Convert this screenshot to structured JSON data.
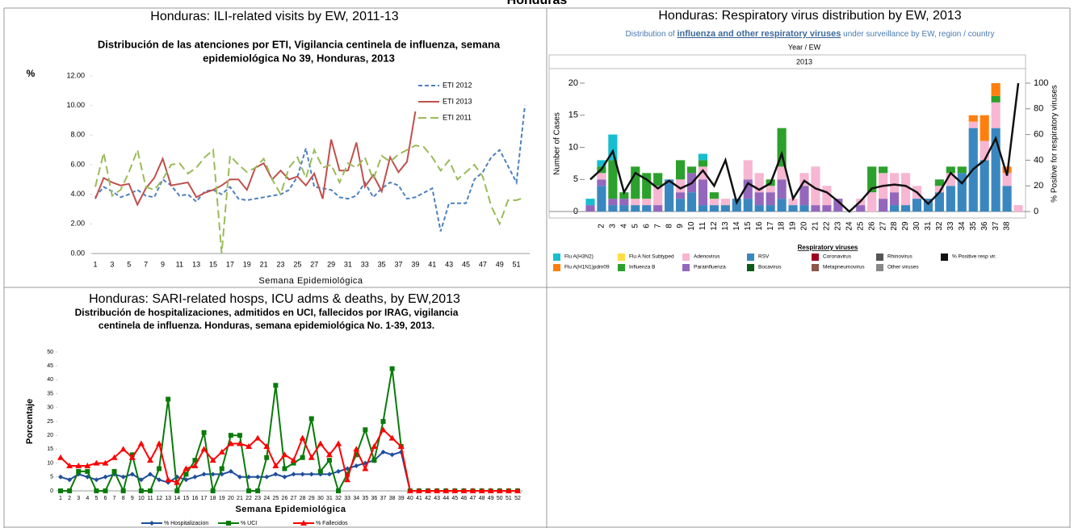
{
  "page_title": "Honduras",
  "chart_data": [
    {
      "type": "line",
      "panel_title": "Honduras: ILI-related visits by EW, 2011-13",
      "title": [
        "Distribución de las atenciones por ETI, Vigilancia centinela de influenza, semana",
        "epidemiológica No 39, Honduras, 2013"
      ],
      "y_label": "%",
      "x_label": "Semana Epidemiológica",
      "x": [
        1,
        2,
        3,
        4,
        5,
        6,
        7,
        8,
        9,
        10,
        11,
        12,
        13,
        14,
        15,
        16,
        17,
        18,
        19,
        20,
        21,
        22,
        23,
        24,
        25,
        26,
        27,
        28,
        29,
        30,
        31,
        32,
        33,
        34,
        35,
        36,
        37,
        38,
        39,
        40,
        41,
        42,
        43,
        44,
        45,
        46,
        47,
        48,
        49,
        50,
        51,
        52
      ],
      "xlim": [
        1,
        52
      ],
      "xticks": [
        1,
        3,
        5,
        7,
        9,
        11,
        13,
        15,
        17,
        19,
        21,
        23,
        25,
        27,
        29,
        31,
        33,
        35,
        37,
        39,
        41,
        43,
        45,
        47,
        49,
        51
      ],
      "ylim": [
        0,
        12
      ],
      "yticks": [
        {
          "value": 0,
          "label": "0.00"
        },
        {
          "value": 2,
          "label": "2.00"
        },
        {
          "value": 4,
          "label": "4.00"
        },
        {
          "value": 6,
          "label": "6.00"
        },
        {
          "value": 8,
          "label": "8.00"
        },
        {
          "value": 10,
          "label": "10.00"
        },
        {
          "value": 12,
          "label": "12.00"
        }
      ],
      "grid": false,
      "legend": "upper-right",
      "series": [
        {
          "name": "ETI 2012",
          "color": "#4f81bd",
          "style": "dashed",
          "values": [
            3.8,
            4.5,
            4.2,
            3.8,
            4.0,
            4.3,
            3.9,
            3.8,
            5.0,
            4.6,
            3.9,
            4.0,
            3.5,
            4.2,
            4.3,
            4.0,
            4.5,
            3.7,
            3.6,
            3.7,
            3.8,
            3.9,
            4.0,
            4.3,
            5.2,
            7.1,
            4.5,
            4.4,
            4.3,
            3.8,
            3.7,
            3.9,
            4.8,
            3.8,
            4.4,
            4.8,
            4.6,
            3.7,
            3.8,
            4.1,
            4.4,
            1.5,
            3.4,
            3.4,
            3.4,
            5.0,
            5.5,
            6.5,
            7.0,
            5.9,
            4.8,
            10.0
          ]
        },
        {
          "name": "ETI 2013",
          "color": "#c0504d",
          "style": "solid",
          "values": [
            3.7,
            5.1,
            4.8,
            4.6,
            4.7,
            3.3,
            4.4,
            5.1,
            6.4,
            4.6,
            4.7,
            4.8,
            3.8,
            4.1,
            4.3,
            4.6,
            5.0,
            5.0,
            4.3,
            5.8,
            6.1,
            5.0,
            5.6,
            5.0,
            5.2,
            4.6,
            5.4,
            3.7,
            7.7,
            5.6,
            5.6,
            7.5,
            4.5,
            5.3,
            4.2,
            6.5,
            5.5,
            6.2,
            9.6,
            null,
            null,
            null,
            null,
            null,
            null,
            null,
            null,
            null,
            null,
            null,
            null,
            null
          ]
        },
        {
          "name": "ETI 2011",
          "color": "#9bbb59",
          "style": "long-dashed",
          "values": [
            4.5,
            6.8,
            3.9,
            4.3,
            5.5,
            7.0,
            4.5,
            4.3,
            5.0,
            6.0,
            6.1,
            5.4,
            5.8,
            6.5,
            7.0,
            0.0,
            6.6,
            6.0,
            5.5,
            5.8,
            6.4,
            5.0,
            4.0,
            5.8,
            6.5,
            5.1,
            7.0,
            5.8,
            6.0,
            4.8,
            6.1,
            5.8,
            6.5,
            5.0,
            6.6,
            6.2,
            6.7,
            7.0,
            7.3,
            7.2,
            6.5,
            5.6,
            6.3,
            5.0,
            5.5,
            6.0,
            5.2,
            3.2,
            2.0,
            3.6,
            3.6,
            3.8
          ]
        }
      ]
    },
    {
      "type": "bar",
      "stacked": true,
      "panel_title": "Honduras: Respiratory virus distribution by EW, 2013",
      "subtitle": [
        "Distribution of ",
        "influenza and other respiratory viruses",
        " under surveillance by EW, region / country"
      ],
      "x_header": "Year / EW",
      "x_group": "2013",
      "y_label": "Number of Cases",
      "y2_label": "% Positive for respiratory viruses",
      "legend_title": "Respiratory viruses",
      "legend": "bottom",
      "categories": [
        null,
        "2",
        "3",
        "4",
        "5",
        "6",
        "7",
        "8",
        "9",
        "10",
        "11",
        "12",
        "13",
        "14",
        "15",
        "16",
        "17",
        "18",
        "19",
        "20",
        "21",
        "22",
        "23",
        "24",
        "25",
        "26",
        "27",
        "28",
        "29",
        "30",
        "31",
        "32",
        "33",
        "34",
        "35",
        "36",
        "37",
        "38",
        null
      ],
      "ylim": [
        -1,
        21
      ],
      "yticks": [
        0,
        5,
        10,
        15,
        20
      ],
      "y2lim": [
        -5,
        105
      ],
      "y2ticks": [
        0,
        20,
        40,
        60,
        80,
        100
      ],
      "series": [
        {
          "name": "RSV",
          "color": "#3a87c0",
          "values": [
            0,
            4,
            1,
            1,
            1,
            1,
            0,
            5,
            2,
            3,
            1,
            1,
            1,
            2,
            2,
            1,
            1,
            2,
            1,
            1,
            0,
            0,
            0,
            0,
            0,
            0,
            0,
            1,
            1,
            2,
            2,
            3,
            4,
            6,
            13,
            8,
            13,
            4,
            0
          ]
        },
        {
          "name": "Parainfluenza",
          "color": "#9467bd",
          "values": [
            1,
            1,
            1,
            1,
            0,
            0,
            1,
            0,
            1,
            3,
            4,
            0,
            0,
            0,
            3,
            2,
            2,
            3,
            0,
            3,
            1,
            1,
            2,
            0,
            1,
            0,
            2,
            2,
            0,
            0,
            0,
            0,
            0,
            0,
            0,
            0,
            0,
            0,
            0
          ]
        },
        {
          "name": "Adenovirus",
          "color": "#f7b6d2",
          "values": [
            0,
            1,
            0,
            0,
            1,
            1,
            3,
            0,
            2,
            0,
            2,
            1,
            1,
            0,
            3,
            3,
            1,
            2,
            1,
            2,
            6,
            3,
            0,
            0,
            1,
            3,
            4,
            3,
            5,
            2,
            0,
            1,
            2,
            0,
            1,
            3,
            4,
            2,
            1
          ]
        },
        {
          "name": "Influenza B",
          "color": "#2ca02c",
          "values": [
            0,
            1,
            6,
            1,
            5,
            4,
            2,
            0,
            3,
            1,
            1,
            1,
            0,
            0,
            0,
            0,
            1,
            6,
            0,
            0,
            0,
            0,
            0,
            0,
            0,
            4,
            1,
            0,
            0,
            0,
            0,
            1,
            1,
            1,
            0,
            0,
            1,
            0,
            0
          ]
        },
        {
          "name": "Flu A(H3N2)",
          "color": "#17becf",
          "values": [
            1,
            1,
            4,
            0,
            0,
            0,
            0,
            0,
            0,
            0,
            1,
            0,
            0,
            0,
            0,
            0,
            0,
            0,
            0,
            0,
            0,
            0,
            0,
            0,
            0,
            0,
            0,
            0,
            0,
            0,
            0,
            0,
            0,
            0,
            0,
            0,
            0,
            0,
            0
          ]
        },
        {
          "name": "Flu A(H1N1)pdm09",
          "color": "#ff7f0e",
          "values": [
            0,
            0,
            0,
            0,
            0,
            0,
            0,
            0,
            0,
            0,
            0,
            0,
            0,
            0,
            0,
            0,
            0,
            0,
            0,
            0,
            0,
            0,
            0,
            0,
            0,
            0,
            0,
            0,
            0,
            0,
            0,
            0,
            0,
            0,
            1,
            4,
            2,
            1,
            0
          ]
        },
        {
          "name": "Flu A Not Subtyped",
          "color": "#ffdd44",
          "values": [
            0,
            0,
            0,
            0,
            0,
            0,
            0,
            0,
            0,
            0,
            0,
            0,
            0,
            0,
            0,
            0,
            0,
            0,
            0,
            0,
            0,
            0,
            0,
            0,
            0,
            0,
            0,
            0,
            0,
            0,
            0,
            0,
            0,
            0,
            0,
            0,
            0,
            0,
            0
          ]
        },
        {
          "name": "Coronavirus",
          "color": "#a00020",
          "values": [
            0,
            0,
            0,
            0,
            0,
            0,
            0,
            0,
            0,
            0,
            0,
            0,
            0,
            0,
            0,
            0,
            0,
            0,
            0,
            0,
            0,
            0,
            0,
            0,
            0,
            0,
            0,
            0,
            0,
            0,
            0,
            0,
            0,
            0,
            0,
            0,
            0,
            0,
            0
          ]
        },
        {
          "name": "Rhinovirus",
          "color": "#555555",
          "values": [
            0,
            0,
            0,
            0,
            0,
            0,
            0,
            0,
            0,
            0,
            0,
            0,
            0,
            0,
            0,
            0,
            0,
            0,
            0,
            0,
            0,
            0,
            0,
            0,
            0,
            0,
            0,
            0,
            0,
            0,
            0,
            0,
            0,
            0,
            0,
            0,
            0,
            0,
            0
          ]
        },
        {
          "name": "Bocavirus",
          "color": "#0a5a1e",
          "values": [
            0,
            0,
            0,
            0,
            0,
            0,
            0,
            0,
            0,
            0,
            0,
            0,
            0,
            0,
            0,
            0,
            0,
            0,
            0,
            0,
            0,
            0,
            0,
            0,
            0,
            0,
            0,
            0,
            0,
            0,
            0,
            0,
            0,
            0,
            0,
            0,
            0,
            0,
            0
          ]
        },
        {
          "name": "Metapneumovirus",
          "color": "#8c564b",
          "values": [
            0,
            0,
            0,
            0,
            0,
            0,
            0,
            0,
            0,
            0,
            0,
            0,
            0,
            0,
            0,
            0,
            0,
            0,
            0,
            0,
            0,
            0,
            0,
            0,
            0,
            0,
            0,
            0,
            0,
            0,
            0,
            0,
            0,
            0,
            0,
            0,
            0,
            0,
            0
          ]
        },
        {
          "name": "Other viruses",
          "color": "#888888",
          "values": [
            0,
            0,
            0,
            0,
            0,
            0,
            0,
            0,
            0,
            0,
            0,
            0,
            0,
            0,
            0,
            0,
            0,
            0,
            0,
            0,
            0,
            0,
            0,
            0,
            0,
            0,
            0,
            0,
            0,
            0,
            0,
            0,
            0,
            0,
            0,
            0,
            0,
            0,
            0
          ]
        },
        {
          "name": "% Positive resp vir.",
          "color": "#111111",
          "type": "line",
          "axis": "y2",
          "values": [
            25,
            33,
            47,
            15,
            30,
            25,
            18,
            24,
            18,
            22,
            32,
            20,
            40,
            7,
            22,
            17,
            22,
            45,
            10,
            24,
            18,
            15,
            8,
            0,
            8,
            18,
            20,
            21,
            20,
            15,
            6,
            15,
            30,
            22,
            33,
            40,
            57,
            28,
            100
          ]
        }
      ]
    },
    {
      "type": "line",
      "panel_title": "Honduras: SARI-related hosps, ICU adms & deaths, by EW,2013",
      "title": [
        "Distribución de hospitalizaciones, admitidos en UCI, fallecidos por IRAG, vigilancia",
        "centinela de influenza. Honduras, semana epidemiológica No. 1-39, 2013."
      ],
      "y_label": "Porcentaje",
      "x_label": "Semana Epidemiológica",
      "categories": [
        1,
        2,
        3,
        4,
        5,
        6,
        7,
        8,
        9,
        10,
        11,
        12,
        13,
        14,
        15,
        16,
        17,
        18,
        19,
        20,
        21,
        22,
        23,
        24,
        25,
        26,
        27,
        28,
        29,
        30,
        31,
        32,
        33,
        34,
        35,
        36,
        37,
        38,
        39,
        40,
        41,
        42,
        43,
        44,
        45,
        46,
        47,
        48,
        49,
        50,
        51,
        52
      ],
      "ylim": [
        0,
        50
      ],
      "yticks": [
        0,
        5,
        10,
        15,
        20,
        25,
        30,
        35,
        40,
        45,
        50
      ],
      "grid": false,
      "legend": "bottom",
      "series": [
        {
          "name": "% Hospitalizacion",
          "color": "#1f4e9c",
          "style": "solid",
          "marker": "diamond",
          "values": [
            5,
            4,
            6,
            5,
            4,
            5,
            6,
            5,
            6,
            4,
            6,
            4,
            3,
            5,
            4,
            5,
            6,
            6,
            6,
            7,
            5,
            5,
            5,
            5,
            6,
            5,
            6,
            6,
            6,
            6,
            6,
            7,
            8,
            9,
            10,
            11,
            14,
            13,
            14,
            0,
            0,
            0,
            0,
            0,
            0,
            0,
            0,
            0,
            0,
            0,
            0,
            0
          ]
        },
        {
          "name": "% UCI",
          "color": "#0a7a0a",
          "style": "solid",
          "marker": "square",
          "values": [
            0,
            0,
            7,
            7,
            0,
            0,
            7,
            0,
            13,
            0,
            0,
            8,
            33,
            0,
            6,
            11,
            21,
            0,
            8,
            20,
            20,
            0,
            0,
            12,
            38,
            8,
            10,
            12,
            26,
            7,
            11,
            0,
            6,
            13,
            22,
            11,
            25,
            44,
            16,
            0,
            0,
            0,
            0,
            0,
            0,
            0,
            0,
            0,
            0,
            0,
            0,
            0
          ]
        },
        {
          "name": "% Fallecidos",
          "color": "#ff0000",
          "style": "solid",
          "marker": "triangle",
          "values": [
            12,
            9,
            9,
            9,
            10,
            10,
            12,
            15,
            12,
            17,
            11,
            17,
            4,
            3,
            8,
            9,
            15,
            11,
            14,
            17,
            17,
            16,
            19,
            16,
            9,
            13,
            11,
            19,
            12,
            17,
            13,
            17,
            4,
            15,
            8,
            16,
            22,
            19,
            16,
            0,
            0,
            0,
            0,
            0,
            0,
            0,
            0,
            0,
            0,
            0,
            0,
            0
          ]
        }
      ]
    }
  ]
}
